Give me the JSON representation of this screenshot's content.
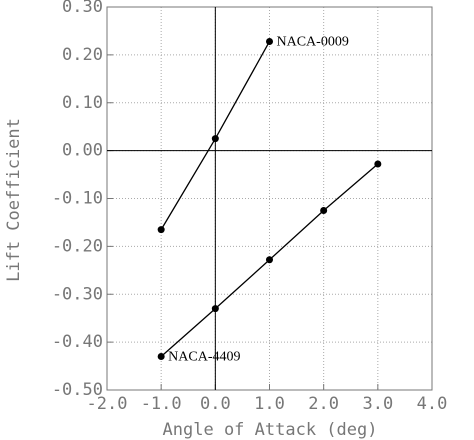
{
  "chart_data": {
    "type": "line",
    "xlabel": "Angle of Attack (deg)",
    "ylabel": "Lift Coefficient",
    "xlim": [
      -2,
      4
    ],
    "xticks": [
      {
        "value": -2,
        "label": "-2.0"
      },
      {
        "value": -1,
        "label": "-1.0"
      },
      {
        "value": 0,
        "label": "0.0"
      },
      {
        "value": 1,
        "label": "1.0"
      },
      {
        "value": 2,
        "label": "2.0"
      },
      {
        "value": 3,
        "label": "3.0"
      },
      {
        "value": 4,
        "label": "4.0"
      }
    ],
    "ylim": [
      -0.5,
      0.3
    ],
    "yticks": [
      {
        "value": -0.5,
        "label": "-0.50"
      },
      {
        "value": -0.4,
        "label": "-0.40"
      },
      {
        "value": -0.3,
        "label": "-0.30"
      },
      {
        "value": -0.2,
        "label": "-0.20"
      },
      {
        "value": -0.1,
        "label": "-0.10"
      },
      {
        "value": 0,
        "label": "0.00"
      },
      {
        "value": 0.1,
        "label": "0.10"
      },
      {
        "value": 0.2,
        "label": "0.20"
      },
      {
        "value": 0.3,
        "label": "0.30"
      }
    ],
    "grid": true,
    "series": [
      {
        "name": "NACA-0009",
        "color": "#000000",
        "x": [
          -1,
          0,
          1
        ],
        "values": [
          -0.165,
          0.025,
          0.228
        ]
      },
      {
        "name": "NACA-4409",
        "color": "#000000",
        "x": [
          -1,
          0,
          1,
          2,
          3
        ],
        "values": [
          -0.43,
          -0.33,
          -0.228,
          -0.125,
          -0.028
        ]
      }
    ]
  }
}
